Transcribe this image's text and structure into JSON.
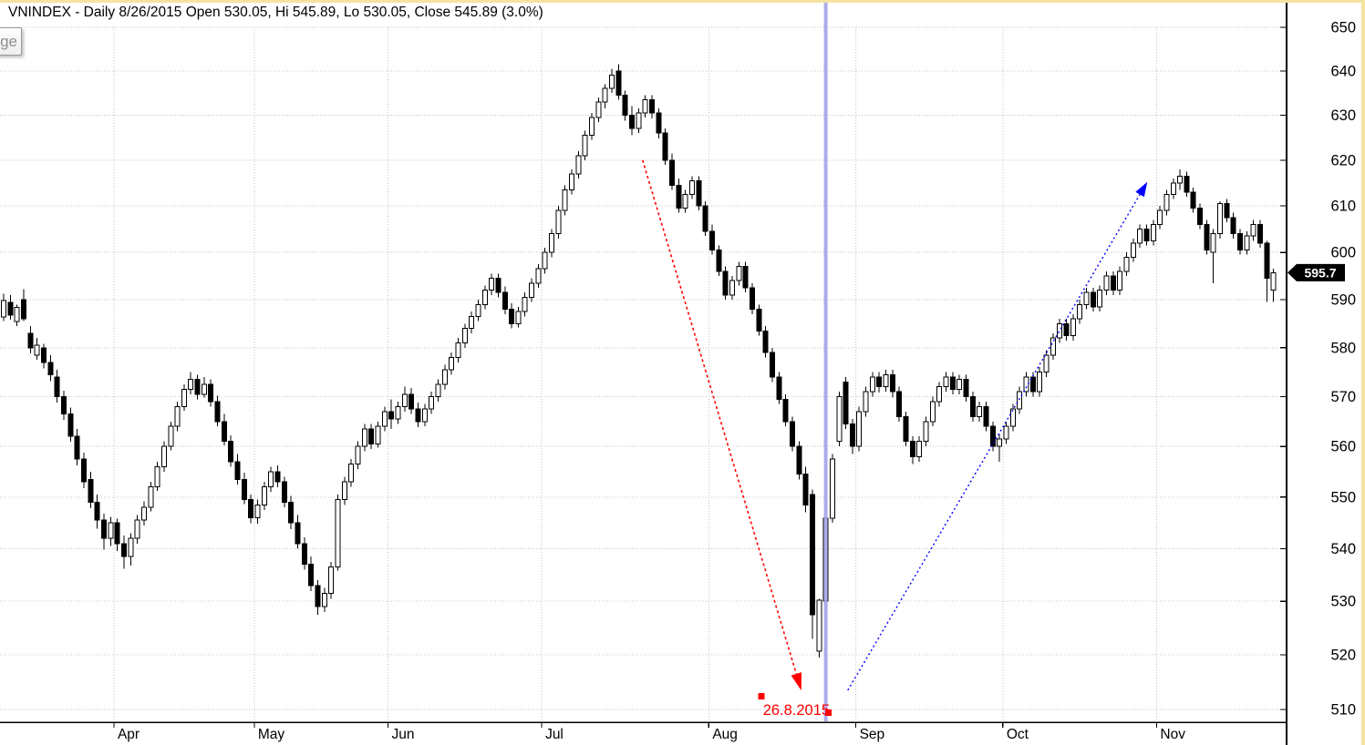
{
  "window": {
    "title_bar": "VNINDEX - Daily 8/26/2015 Open 530.05, Hi 545.89, Lo 530.05, Close 545.89 (3.0%)",
    "partial_button_label": "ge",
    "border_color": "#f5e3a2"
  },
  "chart_data": {
    "type": "candlestick",
    "symbol": "VNINDEX",
    "interval": "Daily",
    "selected_date": "8/26/2015",
    "selected_candle": {
      "open": 530.05,
      "high": 545.89,
      "low": 530.05,
      "close": 545.89,
      "change": "3.0%"
    },
    "scale": "log",
    "ylim": [
      508,
      656
    ],
    "y_ticks": [
      510,
      520,
      530,
      540,
      550,
      560,
      570,
      580,
      590,
      600,
      610,
      620,
      630,
      640,
      650
    ],
    "grid": "dotted",
    "legend": "none",
    "months": [
      {
        "label": "Apr",
        "index": 17
      },
      {
        "label": "May",
        "index": 38
      },
      {
        "label": "Jun",
        "index": 58
      },
      {
        "label": "Jul",
        "index": 81
      },
      {
        "label": "Aug",
        "index": 106
      },
      {
        "label": "Sep",
        "index": 128
      },
      {
        "label": "Oct",
        "index": 150
      },
      {
        "label": "Nov",
        "index": 173
      }
    ],
    "last_price_label": "595.7",
    "last_price": 595.7,
    "selected_index": 123,
    "colors": {
      "up_fill": "#ffffff",
      "down_fill": "#000000",
      "outline": "#000000",
      "grid": "#c4c4c4",
      "axis": "#000000",
      "cursor_line": "#9d9dea",
      "annotation_red": "#ff0000",
      "annotation_blue": "#0000ff",
      "price_flag_bg": "#000000",
      "price_flag_text": "#ffffff"
    },
    "annotations": {
      "vertical_cursor": {
        "index": 123
      },
      "date_label": {
        "text": "26.8.2015",
        "index": 113.6,
        "price": 509.0
      },
      "red_arrow": {
        "from": {
          "index": 95.6,
          "price": 620.0
        },
        "to": {
          "index": 118.6,
          "price": 516.5
        }
      },
      "blue_arrow": {
        "from": {
          "index": 126.3,
          "price": 513.5
        },
        "to": {
          "index": 170.0,
          "price": 612.5
        }
      },
      "handles": [
        {
          "index": 113.4,
          "price": 512.4
        },
        {
          "index": 123.4,
          "price": 509.4
        }
      ]
    },
    "candles": [
      [
        586.4,
        591.3,
        585.5,
        589.8
      ],
      [
        589.4,
        591,
        585.8,
        586.8
      ],
      [
        585.4,
        589,
        584.5,
        588.4
      ],
      [
        590,
        592.2,
        585.5,
        586
      ],
      [
        583,
        584.5,
        578.8,
        580
      ],
      [
        578.5,
        582,
        577.5,
        580.5
      ],
      [
        580,
        580.8,
        575.8,
        577
      ],
      [
        577,
        578.5,
        573.2,
        574.5
      ],
      [
        574,
        575.5,
        568.8,
        570
      ],
      [
        570,
        571.2,
        565.3,
        566.5
      ],
      [
        566.5,
        567.8,
        560.9,
        562
      ],
      [
        562,
        563.5,
        556.2,
        557.5
      ],
      [
        557.5,
        558.8,
        551.8,
        553
      ],
      [
        553.5,
        555,
        547.8,
        549
      ],
      [
        549,
        550.5,
        543.9,
        545.5
      ],
      [
        545.5,
        546.8,
        539.8,
        542
      ],
      [
        542,
        546.2,
        540.5,
        545
      ],
      [
        545,
        545.8,
        539.6,
        541
      ],
      [
        541,
        542.5,
        536.2,
        538.5
      ],
      [
        538.5,
        543,
        536.8,
        542
      ],
      [
        542,
        546.5,
        541,
        545.5
      ],
      [
        545.5,
        549.2,
        544.5,
        548
      ],
      [
        548,
        553,
        547.2,
        552
      ],
      [
        552,
        557,
        551.2,
        556
      ],
      [
        556,
        561,
        555,
        560
      ],
      [
        560,
        565,
        559.2,
        564
      ],
      [
        564,
        569,
        563,
        568
      ],
      [
        568,
        572.5,
        567.2,
        571.5
      ],
      [
        571.5,
        575,
        570.5,
        573.5
      ],
      [
        573.5,
        574.5,
        569.5,
        570.5
      ],
      [
        570.5,
        574,
        569.8,
        572.5
      ],
      [
        572.5,
        573.5,
        568,
        569
      ],
      [
        569,
        570.2,
        564,
        565
      ],
      [
        565,
        566.5,
        560.2,
        561
      ],
      [
        561,
        562.2,
        556,
        557
      ],
      [
        557,
        558.5,
        552.5,
        553.5
      ],
      [
        553.5,
        554.8,
        548.6,
        549.5
      ],
      [
        549.5,
        550.5,
        544.9,
        546
      ],
      [
        546,
        549.5,
        544.8,
        548.5
      ],
      [
        548.5,
        553,
        547.5,
        552
      ],
      [
        552,
        556,
        551,
        555
      ],
      [
        555,
        556.2,
        551.9,
        553
      ],
      [
        553,
        554,
        548,
        549
      ],
      [
        549,
        550.2,
        543.8,
        545
      ],
      [
        545,
        546.5,
        540,
        541
      ],
      [
        541,
        542.2,
        536,
        537
      ],
      [
        537,
        538.5,
        531.9,
        533
      ],
      [
        533,
        534,
        527.5,
        529
      ],
      [
        529,
        532.5,
        528,
        531.5
      ],
      [
        531.5,
        537.5,
        530.5,
        536.5
      ],
      [
        536.5,
        550.5,
        535.8,
        549.5
      ],
      [
        549.5,
        554,
        548.5,
        553
      ],
      [
        553,
        557.5,
        552,
        556.5
      ],
      [
        556.5,
        561,
        555.5,
        560
      ],
      [
        560,
        564.5,
        559,
        563.5
      ],
      [
        563.5,
        564.5,
        559.5,
        560.5
      ],
      [
        560.5,
        565,
        559.8,
        564
      ],
      [
        564,
        568,
        563,
        567
      ],
      [
        567,
        569.5,
        563.5,
        565.5
      ],
      [
        565.5,
        569,
        564.5,
        568
      ],
      [
        568,
        572,
        567,
        570.5
      ],
      [
        570.5,
        571.8,
        566.5,
        567.5
      ],
      [
        567.5,
        568.8,
        563.9,
        565
      ],
      [
        565,
        568.5,
        564,
        567.5
      ],
      [
        567.5,
        571,
        566.5,
        570
      ],
      [
        570,
        573.5,
        569,
        572.5
      ],
      [
        572.5,
        576.5,
        571.5,
        575.5
      ],
      [
        575.5,
        579,
        574.5,
        578
      ],
      [
        578,
        582,
        577,
        581
      ],
      [
        581,
        585,
        580,
        584
      ],
      [
        584,
        587.5,
        583,
        586.5
      ],
      [
        586.5,
        590,
        585.5,
        589
      ],
      [
        589,
        593,
        588,
        592
      ],
      [
        592,
        595.5,
        591,
        594.5
      ],
      [
        594.5,
        595.5,
        590.5,
        591.5
      ],
      [
        591.5,
        592.8,
        587,
        588
      ],
      [
        588,
        589.2,
        584,
        585
      ],
      [
        585,
        588.5,
        584.2,
        587.5
      ],
      [
        587.5,
        591.5,
        586.5,
        590.5
      ],
      [
        590.5,
        594.5,
        589.5,
        593.5
      ],
      [
        593.5,
        597.5,
        592.5,
        596.5
      ],
      [
        596.5,
        601,
        595.5,
        600
      ],
      [
        600,
        605,
        599,
        604
      ],
      [
        604,
        610,
        603,
        609
      ],
      [
        609,
        614.5,
        608,
        613.5
      ],
      [
        613.5,
        618,
        612.5,
        617
      ],
      [
        617,
        622,
        616,
        621
      ],
      [
        621,
        626.5,
        620,
        625.5
      ],
      [
        625.5,
        630.5,
        624.5,
        629.5
      ],
      [
        629.5,
        634,
        628.5,
        633
      ],
      [
        633,
        637,
        631.5,
        636
      ],
      [
        636,
        640.5,
        635,
        639
      ],
      [
        640,
        641.5,
        633.5,
        634.5
      ],
      [
        634.5,
        635.5,
        628.8,
        630
      ],
      [
        630,
        632,
        625.5,
        627
      ],
      [
        627,
        631.5,
        626,
        630.5
      ],
      [
        630.5,
        634.5,
        629.5,
        633.5
      ],
      [
        633.5,
        634.5,
        629.3,
        630.5
      ],
      [
        630.5,
        631.5,
        624.8,
        626
      ],
      [
        626,
        627,
        619,
        620
      ],
      [
        620,
        621.5,
        613.5,
        614.5
      ],
      [
        614.5,
        616,
        608.5,
        609.5
      ],
      [
        609.5,
        613.5,
        608.5,
        612.5
      ],
      [
        612.5,
        616.5,
        611.5,
        615.5
      ],
      [
        615.5,
        616.5,
        609,
        610
      ],
      [
        610,
        611,
        603.5,
        604.5
      ],
      [
        604.5,
        606,
        599.5,
        600.5
      ],
      [
        600.5,
        601.5,
        595,
        596
      ],
      [
        596,
        597,
        590,
        591
      ],
      [
        591,
        595,
        590,
        594
      ],
      [
        594,
        598,
        593,
        597
      ],
      [
        597,
        598,
        591.5,
        592.5
      ],
      [
        592.5,
        593.5,
        587,
        588
      ],
      [
        588,
        589,
        582.5,
        583.5
      ],
      [
        583.5,
        584.5,
        578,
        579
      ],
      [
        579,
        580,
        573,
        574
      ],
      [
        574,
        575,
        568.5,
        569.5
      ],
      [
        569.5,
        570.5,
        564,
        565
      ],
      [
        565,
        566,
        559,
        560
      ],
      [
        560,
        561,
        553.5,
        554.5
      ],
      [
        554.5,
        556,
        547,
        548.5
      ],
      [
        550.5,
        551.5,
        523,
        527.5
      ],
      [
        520.7,
        530.5,
        519.5,
        530.2
      ],
      [
        530.05,
        545.89,
        530.05,
        545.89
      ],
      [
        545.9,
        558.5,
        545,
        557.5
      ],
      [
        561,
        571,
        560,
        570
      ],
      [
        573,
        574,
        563.5,
        564.5
      ],
      [
        564.5,
        565.5,
        558.5,
        560
      ],
      [
        560,
        568,
        559,
        567
      ],
      [
        567,
        572,
        566,
        571
      ],
      [
        571,
        575,
        570,
        574
      ],
      [
        574,
        575,
        570.8,
        572
      ],
      [
        572,
        575.5,
        571,
        574.5
      ],
      [
        574.5,
        575.5,
        569.8,
        571
      ],
      [
        571,
        572,
        565,
        566
      ],
      [
        566,
        567,
        560,
        561
      ],
      [
        561,
        562,
        556.5,
        558
      ],
      [
        558,
        562,
        557,
        561
      ],
      [
        561,
        566,
        560,
        565
      ],
      [
        565,
        570,
        564,
        569
      ],
      [
        569,
        573,
        568,
        572
      ],
      [
        572,
        575,
        571,
        574
      ],
      [
        574,
        575,
        570.5,
        571.5
      ],
      [
        571.5,
        574.5,
        570.5,
        573.5
      ],
      [
        573.5,
        574.5,
        569,
        570
      ],
      [
        570,
        571,
        565,
        566
      ],
      [
        566,
        569,
        565,
        568
      ],
      [
        568,
        569,
        563,
        564
      ],
      [
        564,
        565,
        559,
        560
      ],
      [
        560,
        562.5,
        557,
        561.5
      ],
      [
        561.5,
        565,
        560.5,
        564
      ],
      [
        564,
        568.5,
        563,
        567.5
      ],
      [
        567.5,
        572,
        566.5,
        571
      ],
      [
        571,
        575,
        570,
        574
      ],
      [
        574,
        575,
        570,
        571
      ],
      [
        571,
        576,
        570,
        575
      ],
      [
        575,
        579.5,
        574,
        578.5
      ],
      [
        578.5,
        583,
        577.5,
        582
      ],
      [
        582,
        586,
        581,
        585
      ],
      [
        585,
        586,
        581.5,
        582.5
      ],
      [
        582.5,
        587,
        581.5,
        586
      ],
      [
        586,
        590,
        585,
        589
      ],
      [
        589,
        592.5,
        588,
        591.5
      ],
      [
        591.5,
        592.5,
        587.5,
        588.5
      ],
      [
        588.5,
        593,
        587.5,
        592
      ],
      [
        592,
        596,
        591,
        595
      ],
      [
        595,
        596,
        591,
        592
      ],
      [
        592,
        597,
        591,
        596
      ],
      [
        596,
        600,
        595,
        599
      ],
      [
        599,
        603,
        598,
        602
      ],
      [
        602,
        606,
        601,
        605
      ],
      [
        605,
        606,
        601.5,
        602.5
      ],
      [
        602.5,
        607,
        601.5,
        606
      ],
      [
        606,
        610,
        605,
        609
      ],
      [
        609,
        613.5,
        608,
        612.5
      ],
      [
        612.5,
        616,
        611.5,
        615
      ],
      [
        615,
        618,
        613.5,
        616.5
      ],
      [
        616.5,
        617.5,
        612,
        613
      ],
      [
        613,
        614,
        608.5,
        609.5
      ],
      [
        609.5,
        610.5,
        605,
        606
      ],
      [
        606,
        607,
        599.5,
        600.5
      ],
      [
        600,
        605,
        593.5,
        604
      ],
      [
        604,
        611,
        603,
        610.5
      ],
      [
        610.5,
        611.5,
        606.5,
        607.5
      ],
      [
        607.5,
        608.5,
        603,
        604
      ],
      [
        604,
        605,
        599.5,
        600.5
      ],
      [
        600.5,
        604.5,
        599.5,
        603.5
      ],
      [
        603.5,
        607,
        602.5,
        606
      ],
      [
        606,
        607,
        601,
        602
      ],
      [
        602,
        602.5,
        589.5,
        594.5
      ],
      [
        592,
        596.5,
        589.5,
        595.7
      ]
    ]
  }
}
